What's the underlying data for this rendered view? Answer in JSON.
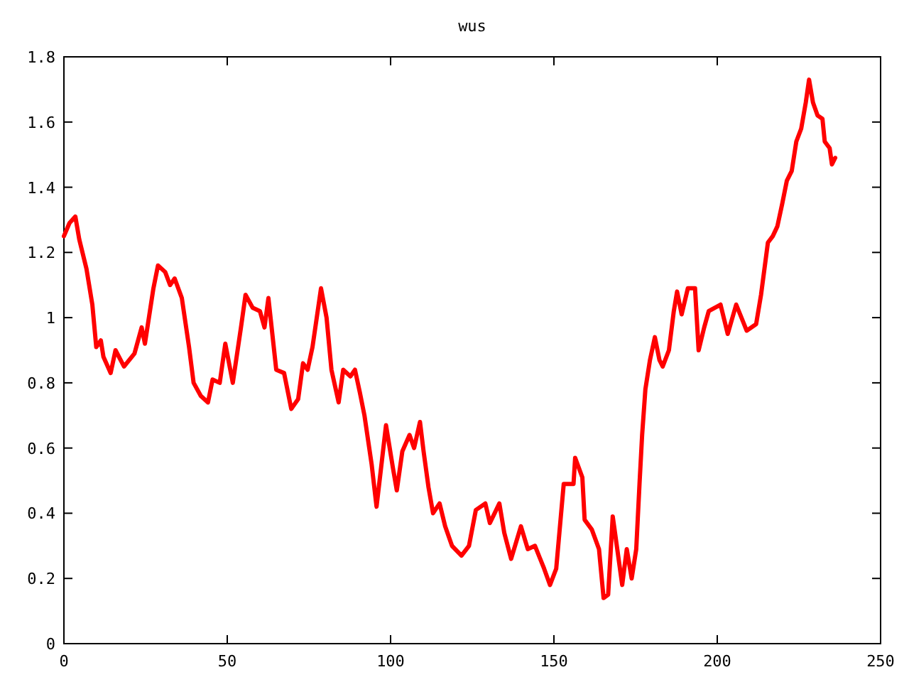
{
  "chart_data": {
    "type": "line",
    "title": "wus",
    "x": [
      0,
      1.7,
      3.5,
      4.7,
      6.9,
      8.7,
      9.9,
      11.3,
      12.1,
      14.3,
      15.8,
      18.4,
      21.6,
      23.8,
      24.8,
      27.4,
      28.8,
      31,
      32.5,
      33.9,
      36.1,
      38.3,
      39.7,
      41.9,
      44.1,
      45.5,
      47.7,
      49.4,
      51.7,
      54.2,
      55.6,
      57.8,
      60,
      61.4,
      62.6,
      65,
      67.4,
      69.6,
      71.7,
      73.2,
      74.6,
      76.1,
      78.7,
      80.4,
      81.9,
      84.1,
      85.5,
      87.7,
      89.1,
      90.6,
      92,
      94.2,
      95.7,
      97.1,
      98.6,
      100.7,
      101.9,
      103.6,
      105.8,
      107.2,
      109,
      110.1,
      111.6,
      113,
      115,
      116.7,
      118.8,
      121.7,
      124,
      126.1,
      129,
      130.4,
      133.3,
      134.8,
      136.9,
      139.9,
      142,
      144.2,
      147,
      148.8,
      150.7,
      153,
      156,
      156.5,
      158.7,
      159.4,
      161.6,
      163.8,
      165.2,
      166.6,
      168,
      168.7,
      170.9,
      172.3,
      173.8,
      175.2,
      176.2,
      177,
      178,
      179.4,
      180.9,
      182.3,
      183.3,
      185.2,
      186.7,
      187.7,
      189.1,
      191,
      193.2,
      194.3,
      196,
      197.4,
      201,
      203.2,
      205.8,
      209,
      211.9,
      213.4,
      215.5,
      217,
      218.4,
      219.9,
      221.3,
      222.8,
      224.2,
      225.7,
      227.1,
      228.1,
      229.3,
      230.7,
      232.2,
      232.9,
      234.4,
      235.1,
      236.1
    ],
    "series": [
      {
        "color": "#ff0000",
        "values": [
          1.25,
          1.29,
          1.31,
          1.24,
          1.15,
          1.04,
          0.91,
          0.93,
          0.88,
          0.83,
          0.9,
          0.85,
          0.89,
          0.97,
          0.92,
          1.09,
          1.16,
          1.14,
          1.1,
          1.12,
          1.06,
          0.91,
          0.8,
          0.76,
          0.74,
          0.81,
          0.8,
          0.92,
          0.8,
          0.97,
          1.07,
          1.03,
          1.02,
          0.97,
          1.06,
          0.84,
          0.83,
          0.72,
          0.75,
          0.86,
          0.84,
          0.91,
          1.09,
          1.0,
          0.84,
          0.74,
          0.84,
          0.82,
          0.84,
          0.77,
          0.7,
          0.55,
          0.42,
          0.54,
          0.67,
          0.54,
          0.47,
          0.59,
          0.64,
          0.6,
          0.68,
          0.59,
          0.48,
          0.4,
          0.43,
          0.36,
          0.3,
          0.27,
          0.3,
          0.41,
          0.43,
          0.37,
          0.43,
          0.34,
          0.26,
          0.36,
          0.29,
          0.3,
          0.23,
          0.18,
          0.23,
          0.49,
          0.49,
          0.57,
          0.51,
          0.38,
          0.35,
          0.29,
          0.14,
          0.15,
          0.39,
          0.34,
          0.18,
          0.29,
          0.2,
          0.29,
          0.49,
          0.64,
          0.78,
          0.87,
          0.94,
          0.87,
          0.85,
          0.9,
          1.02,
          1.08,
          1.01,
          1.09,
          1.09,
          0.9,
          0.97,
          1.02,
          1.04,
          0.95,
          1.04,
          0.96,
          0.98,
          1.07,
          1.23,
          1.25,
          1.28,
          1.35,
          1.42,
          1.45,
          1.54,
          1.58,
          1.66,
          1.73,
          1.66,
          1.62,
          1.61,
          1.54,
          1.52,
          1.47,
          1.49
        ]
      }
    ],
    "xlim": [
      0,
      250
    ],
    "xticks": [
      0,
      50,
      100,
      150,
      200,
      250
    ],
    "ylim": [
      0,
      1.8
    ],
    "yticks": [
      0,
      0.2,
      0.4,
      0.6,
      0.8,
      1,
      1.2,
      1.4,
      1.6,
      1.8
    ],
    "marker": "none",
    "line_style": "solid"
  }
}
